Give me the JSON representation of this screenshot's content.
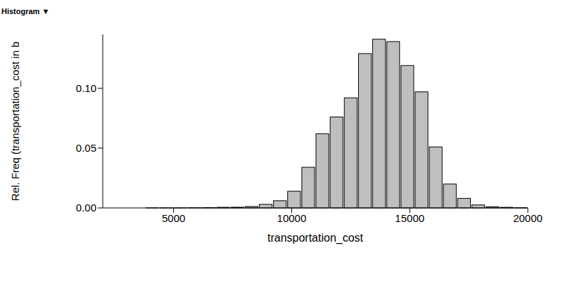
{
  "chart_data": {
    "type": "histogram",
    "title": "Histogram ▼",
    "xlabel": "transportation_cost",
    "ylabel": "Rel. Freq (transportation_cost in b",
    "bins": [
      2000,
      2600,
      3200,
      3800,
      4400,
      5000,
      5600,
      6200,
      6800,
      7400,
      8000,
      8600,
      9200,
      9800,
      10400,
      11000,
      11600,
      12200,
      12800,
      13400,
      14000,
      14600,
      15200,
      15800,
      16400,
      17000,
      17600,
      18200,
      18800,
      19400,
      20000
    ],
    "counts": [
      0,
      0,
      0,
      0.0001,
      0.0001,
      0.0001,
      0.0002,
      0.0003,
      0.0005,
      0.0006,
      0.0012,
      0.003,
      0.006,
      0.014,
      0.034,
      0.062,
      0.076,
      0.092,
      0.129,
      0.141,
      0.139,
      0.119,
      0.097,
      0.051,
      0.02,
      0.008,
      0.0025,
      0.001,
      0.0005,
      0.0002
    ],
    "color": "#bfbfbf",
    "xlim": [
      2000,
      20000
    ],
    "xticks": [
      5000,
      10000,
      15000,
      20000
    ],
    "ylim": [
      0,
      0.145
    ],
    "yticks": [
      {
        "value": 0,
        "label": "0.00"
      },
      {
        "value": 0.05,
        "label": "0.05"
      },
      {
        "value": 0.1,
        "label": "0.10"
      }
    ],
    "grid": false
  }
}
